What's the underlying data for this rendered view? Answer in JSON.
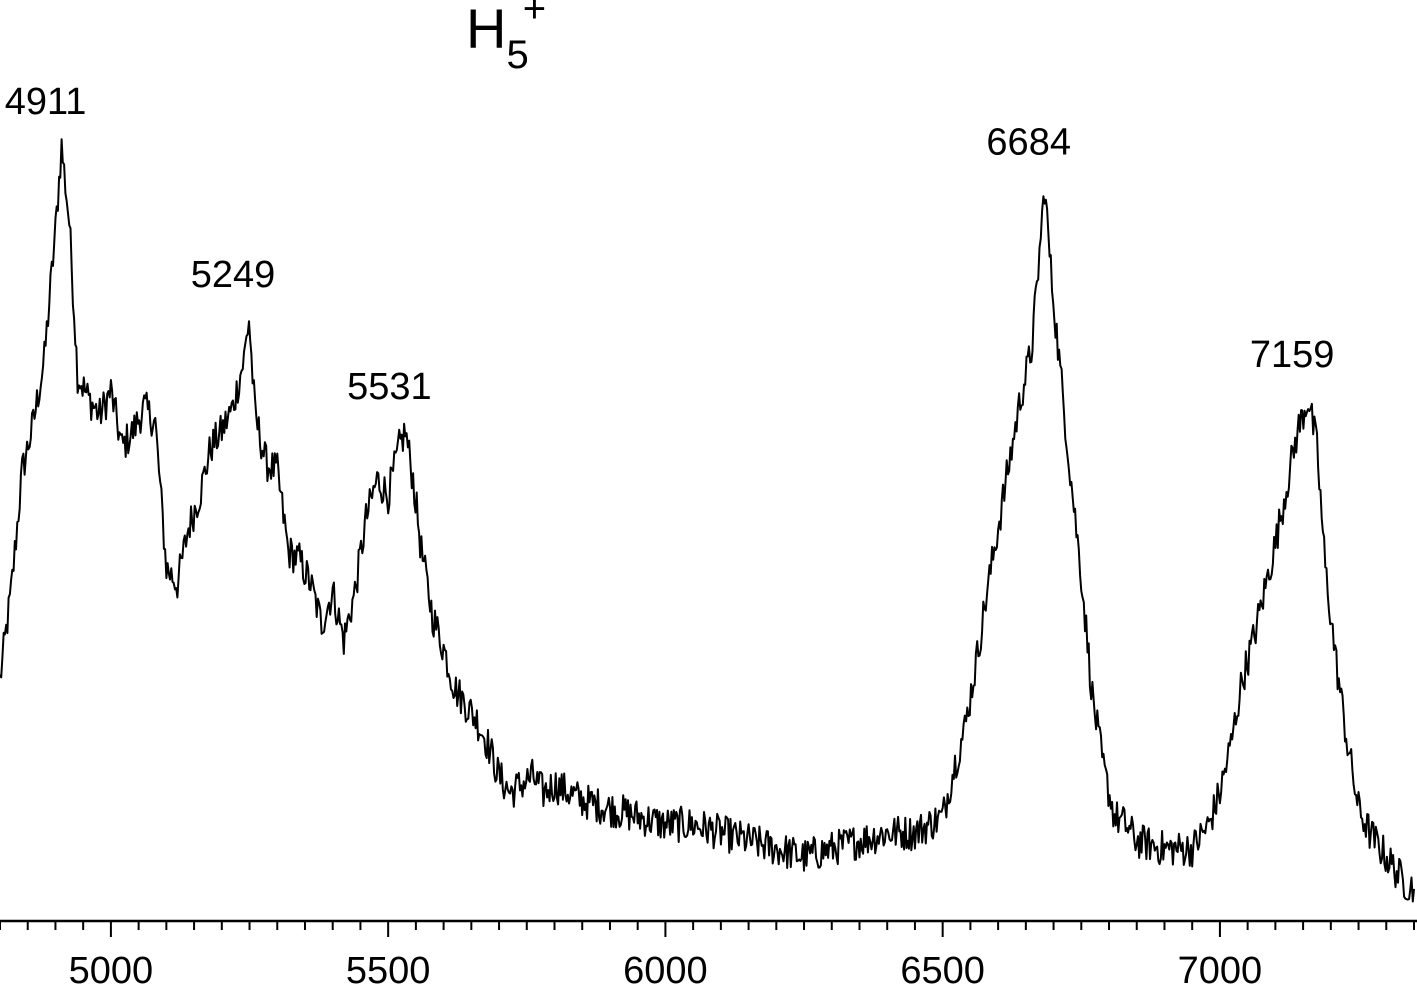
{
  "chart_data": {
    "type": "line",
    "title": {
      "base": "H",
      "subscript": "5",
      "superscript": "+"
    },
    "xlabel": "",
    "ylabel": "",
    "xlim": [
      4800,
      7350
    ],
    "ylim": [
      0,
      1
    ],
    "y_axis_shown": false,
    "grid": false,
    "x_ticks_major": [
      5000,
      5500,
      6000,
      6500,
      7000
    ],
    "x_tick_labels": [
      "5000",
      "5500",
      "6000",
      "6500",
      "7000"
    ],
    "x_minor_step": 50,
    "series": [
      {
        "line_color": "#000000",
        "x": [
          4800,
          4820,
          4840,
          4860,
          4880,
          4900,
          4911,
          4925,
          4940,
          4960,
          4980,
          5000,
          5020,
          5040,
          5060,
          5080,
          5100,
          5120,
          5140,
          5160,
          5180,
          5200,
          5220,
          5240,
          5249,
          5260,
          5280,
          5300,
          5320,
          5340,
          5360,
          5380,
          5400,
          5420,
          5440,
          5460,
          5480,
          5500,
          5520,
          5531,
          5545,
          5560,
          5580,
          5600,
          5620,
          5640,
          5660,
          5680,
          5700,
          5720,
          5740,
          5760,
          5780,
          5800,
          5850,
          5900,
          5950,
          6000,
          6050,
          6100,
          6150,
          6200,
          6250,
          6300,
          6350,
          6400,
          6450,
          6500,
          6520,
          6540,
          6560,
          6580,
          6600,
          6620,
          6640,
          6660,
          6670,
          6684,
          6695,
          6710,
          6730,
          6750,
          6770,
          6790,
          6810,
          6830,
          6850,
          6900,
          6950,
          6980,
          7000,
          7020,
          7040,
          7060,
          7080,
          7100,
          7120,
          7140,
          7159,
          7175,
          7190,
          7210,
          7230,
          7250,
          7270,
          7290,
          7310,
          7330,
          7350
        ],
        "y": [
          0.29,
          0.4,
          0.55,
          0.61,
          0.69,
          0.85,
          0.955,
          0.86,
          0.67,
          0.64,
          0.62,
          0.65,
          0.58,
          0.6,
          0.63,
          0.61,
          0.43,
          0.41,
          0.48,
          0.52,
          0.58,
          0.6,
          0.63,
          0.69,
          0.74,
          0.62,
          0.56,
          0.55,
          0.45,
          0.44,
          0.41,
          0.36,
          0.4,
          0.34,
          0.4,
          0.49,
          0.54,
          0.52,
          0.58,
          0.6,
          0.54,
          0.45,
          0.37,
          0.33,
          0.28,
          0.26,
          0.24,
          0.21,
          0.17,
          0.15,
          0.16,
          0.17,
          0.15,
          0.16,
          0.14,
          0.13,
          0.12,
          0.11,
          0.11,
          0.1,
          0.09,
          0.08,
          0.07,
          0.08,
          0.09,
          0.1,
          0.1,
          0.12,
          0.18,
          0.23,
          0.31,
          0.4,
          0.48,
          0.56,
          0.64,
          0.7,
          0.78,
          0.905,
          0.8,
          0.69,
          0.55,
          0.42,
          0.27,
          0.18,
          0.12,
          0.11,
          0.09,
          0.08,
          0.08,
          0.11,
          0.15,
          0.21,
          0.29,
          0.34,
          0.4,
          0.46,
          0.53,
          0.6,
          0.64,
          0.58,
          0.43,
          0.31,
          0.21,
          0.13,
          0.1,
          0.08,
          0.06,
          0.04,
          0.03
        ]
      }
    ],
    "annotations": [
      {
        "x": 4911,
        "y": 0.955,
        "text": "4911"
      },
      {
        "x": 5249,
        "y": 0.74,
        "text": "5249"
      },
      {
        "x": 5531,
        "y": 0.6,
        "text": "5531"
      },
      {
        "x": 6684,
        "y": 0.905,
        "text": "6684"
      },
      {
        "x": 7159,
        "y": 0.64,
        "text": "7159"
      }
    ]
  }
}
